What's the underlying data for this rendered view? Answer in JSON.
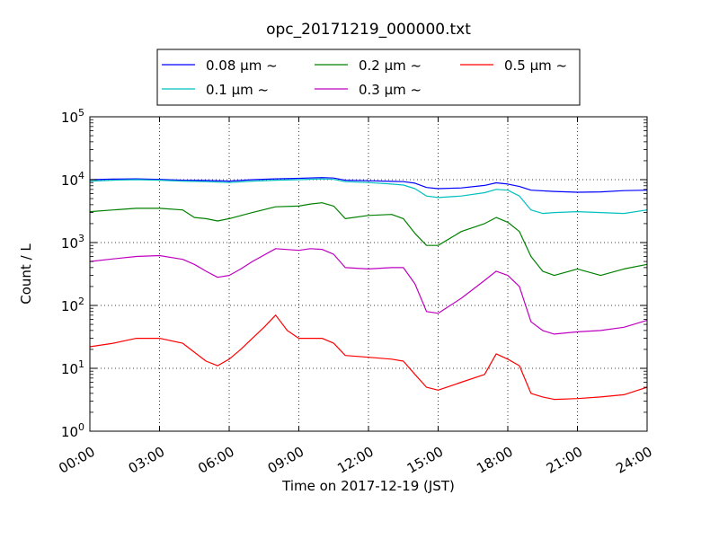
{
  "chart_data": {
    "type": "line",
    "title": "opc_20171219_000000.txt",
    "xlabel": "Time on 2017-12-19 (JST)",
    "ylabel": "Count / L",
    "y_scale": "log",
    "ylim": [
      1,
      100000
    ],
    "xlim": [
      "00:00",
      "24:00"
    ],
    "grid": true,
    "legend_position": "top-center",
    "x_ticks": [
      "00:00",
      "03:00",
      "06:00",
      "09:00",
      "12:00",
      "15:00",
      "18:00",
      "21:00",
      "24:00"
    ],
    "y_ticks": [
      {
        "value": 1,
        "base": "10",
        "exp": "0"
      },
      {
        "value": 10,
        "base": "10",
        "exp": "1"
      },
      {
        "value": 100,
        "base": "10",
        "exp": "2"
      },
      {
        "value": 1000,
        "base": "10",
        "exp": "3"
      },
      {
        "value": 10000,
        "base": "10",
        "exp": "4"
      },
      {
        "value": 100000,
        "base": "10",
        "exp": "5"
      }
    ],
    "series": [
      {
        "name": "0.08 μm ~",
        "color": "#0000ff",
        "x": [
          "00:00",
          "01:00",
          "02:00",
          "03:00",
          "04:00",
          "05:00",
          "06:00",
          "07:00",
          "08:00",
          "09:00",
          "10:00",
          "10:30",
          "11:00",
          "12:00",
          "13:00",
          "13:30",
          "14:00",
          "14:30",
          "15:00",
          "16:00",
          "17:00",
          "17:30",
          "18:00",
          "18:30",
          "19:00",
          "20:00",
          "21:00",
          "22:00",
          "23:00",
          "24:00"
        ],
        "y": [
          10000,
          10200,
          10300,
          10100,
          9800,
          9700,
          9500,
          10000,
          10300,
          10500,
          10800,
          10600,
          9800,
          9600,
          9400,
          9300,
          8800,
          7500,
          7200,
          7400,
          8100,
          8900,
          8500,
          7800,
          6800,
          6500,
          6300,
          6400,
          6700,
          6800
        ]
      },
      {
        "name": "0.1 μm ~",
        "color": "#00bfbf",
        "x": [
          "00:00",
          "01:00",
          "02:00",
          "03:00",
          "04:00",
          "05:00",
          "06:00",
          "07:00",
          "08:00",
          "09:00",
          "10:00",
          "10:30",
          "11:00",
          "12:00",
          "13:00",
          "13:30",
          "14:00",
          "14:30",
          "15:00",
          "16:00",
          "17:00",
          "17:30",
          "18:00",
          "18:30",
          "19:00",
          "19:30",
          "20:00",
          "21:00",
          "22:00",
          "23:00",
          "24:00"
        ],
        "y": [
          9500,
          9800,
          10000,
          9800,
          9500,
          9300,
          9000,
          9500,
          9800,
          10000,
          10300,
          10100,
          9300,
          9000,
          8500,
          8200,
          7200,
          5500,
          5200,
          5500,
          6200,
          7000,
          6800,
          5500,
          3300,
          2900,
          3000,
          3100,
          3000,
          2900,
          3300
        ]
      },
      {
        "name": "0.2 μm ~",
        "color": "#008000",
        "x": [
          "00:00",
          "01:00",
          "02:00",
          "03:00",
          "04:00",
          "04:30",
          "05:00",
          "05:30",
          "06:00",
          "07:00",
          "08:00",
          "09:00",
          "09:30",
          "10:00",
          "10:30",
          "11:00",
          "12:00",
          "13:00",
          "13:30",
          "14:00",
          "14:30",
          "15:00",
          "16:00",
          "17:00",
          "17:30",
          "18:00",
          "18:30",
          "19:00",
          "19:30",
          "20:00",
          "21:00",
          "22:00",
          "23:00",
          "24:00"
        ],
        "y": [
          3100,
          3300,
          3500,
          3500,
          3300,
          2500,
          2400,
          2200,
          2400,
          3000,
          3700,
          3800,
          4100,
          4300,
          3800,
          2400,
          2700,
          2800,
          2400,
          1400,
          900,
          900,
          1500,
          2000,
          2500,
          2100,
          1500,
          600,
          350,
          300,
          380,
          300,
          380,
          450
        ]
      },
      {
        "name": "0.3 μm ~",
        "color": "#bf00bf",
        "x": [
          "00:00",
          "01:00",
          "02:00",
          "03:00",
          "04:00",
          "04:30",
          "05:00",
          "05:30",
          "06:00",
          "06:30",
          "07:00",
          "08:00",
          "09:00",
          "09:30",
          "10:00",
          "10:30",
          "11:00",
          "12:00",
          "13:00",
          "13:30",
          "14:00",
          "14:30",
          "15:00",
          "16:00",
          "17:00",
          "17:30",
          "18:00",
          "18:30",
          "19:00",
          "19:30",
          "20:00",
          "21:00",
          "22:00",
          "23:00",
          "24:00"
        ],
        "y": [
          500,
          550,
          600,
          620,
          540,
          450,
          350,
          280,
          300,
          380,
          500,
          800,
          750,
          800,
          780,
          650,
          400,
          380,
          400,
          400,
          220,
          80,
          75,
          130,
          250,
          350,
          300,
          200,
          55,
          40,
          35,
          38,
          40,
          45,
          58
        ]
      },
      {
        "name": "0.5 μm ~",
        "color": "#ff0000",
        "x": [
          "00:00",
          "01:00",
          "02:00",
          "03:00",
          "04:00",
          "04:30",
          "05:00",
          "05:30",
          "06:00",
          "06:30",
          "07:00",
          "07:30",
          "08:00",
          "08:30",
          "09:00",
          "10:00",
          "10:30",
          "11:00",
          "12:00",
          "13:00",
          "13:30",
          "14:00",
          "14:30",
          "15:00",
          "16:00",
          "17:00",
          "17:30",
          "18:00",
          "18:30",
          "19:00",
          "19:30",
          "20:00",
          "21:00",
          "22:00",
          "23:00",
          "24:00"
        ],
        "y": [
          22,
          25,
          30,
          30,
          25,
          18,
          13,
          11,
          14,
          20,
          30,
          45,
          70,
          40,
          30,
          30,
          25,
          16,
          15,
          14,
          13,
          8,
          5,
          4.5,
          6,
          8,
          17,
          14,
          11,
          4,
          3.5,
          3.2,
          3.3,
          3.5,
          3.8,
          5
        ]
      }
    ]
  }
}
